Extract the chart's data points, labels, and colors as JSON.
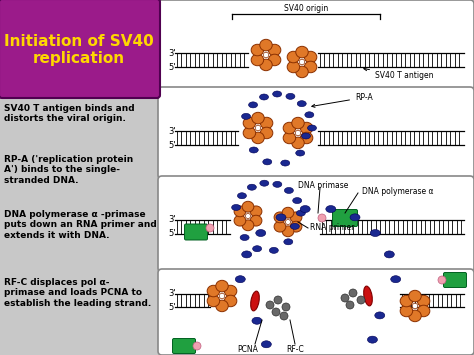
{
  "title": "Initiation of SV40\nreplication",
  "title_bg": "#9B1B8A",
  "title_color": "#FFD700",
  "bg_color": "#C8C8C8",
  "panel_bg": "#FFFFFF",
  "panel_border": "#888888",
  "orange": "#E07828",
  "blue": "#1A2890",
  "green": "#20A040",
  "red": "#CC1010",
  "pink": "#F0A0B0",
  "dark_orange_edge": "#8B3000",
  "descriptions": [
    "SV40 T antigen binds and\ndistorts the viral origin.",
    "RP-A ('replication protein\nA') binds to the single-\nstranded DNA.",
    "DNA polymerase α -primase\nputs down an RNA primer and\nextends it with DNA.",
    "RF-C displaces pol α-\nprimase and loads PCNA to\nestablish the leading strand."
  ],
  "fig_width": 4.74,
  "fig_height": 3.55,
  "dpi": 100
}
